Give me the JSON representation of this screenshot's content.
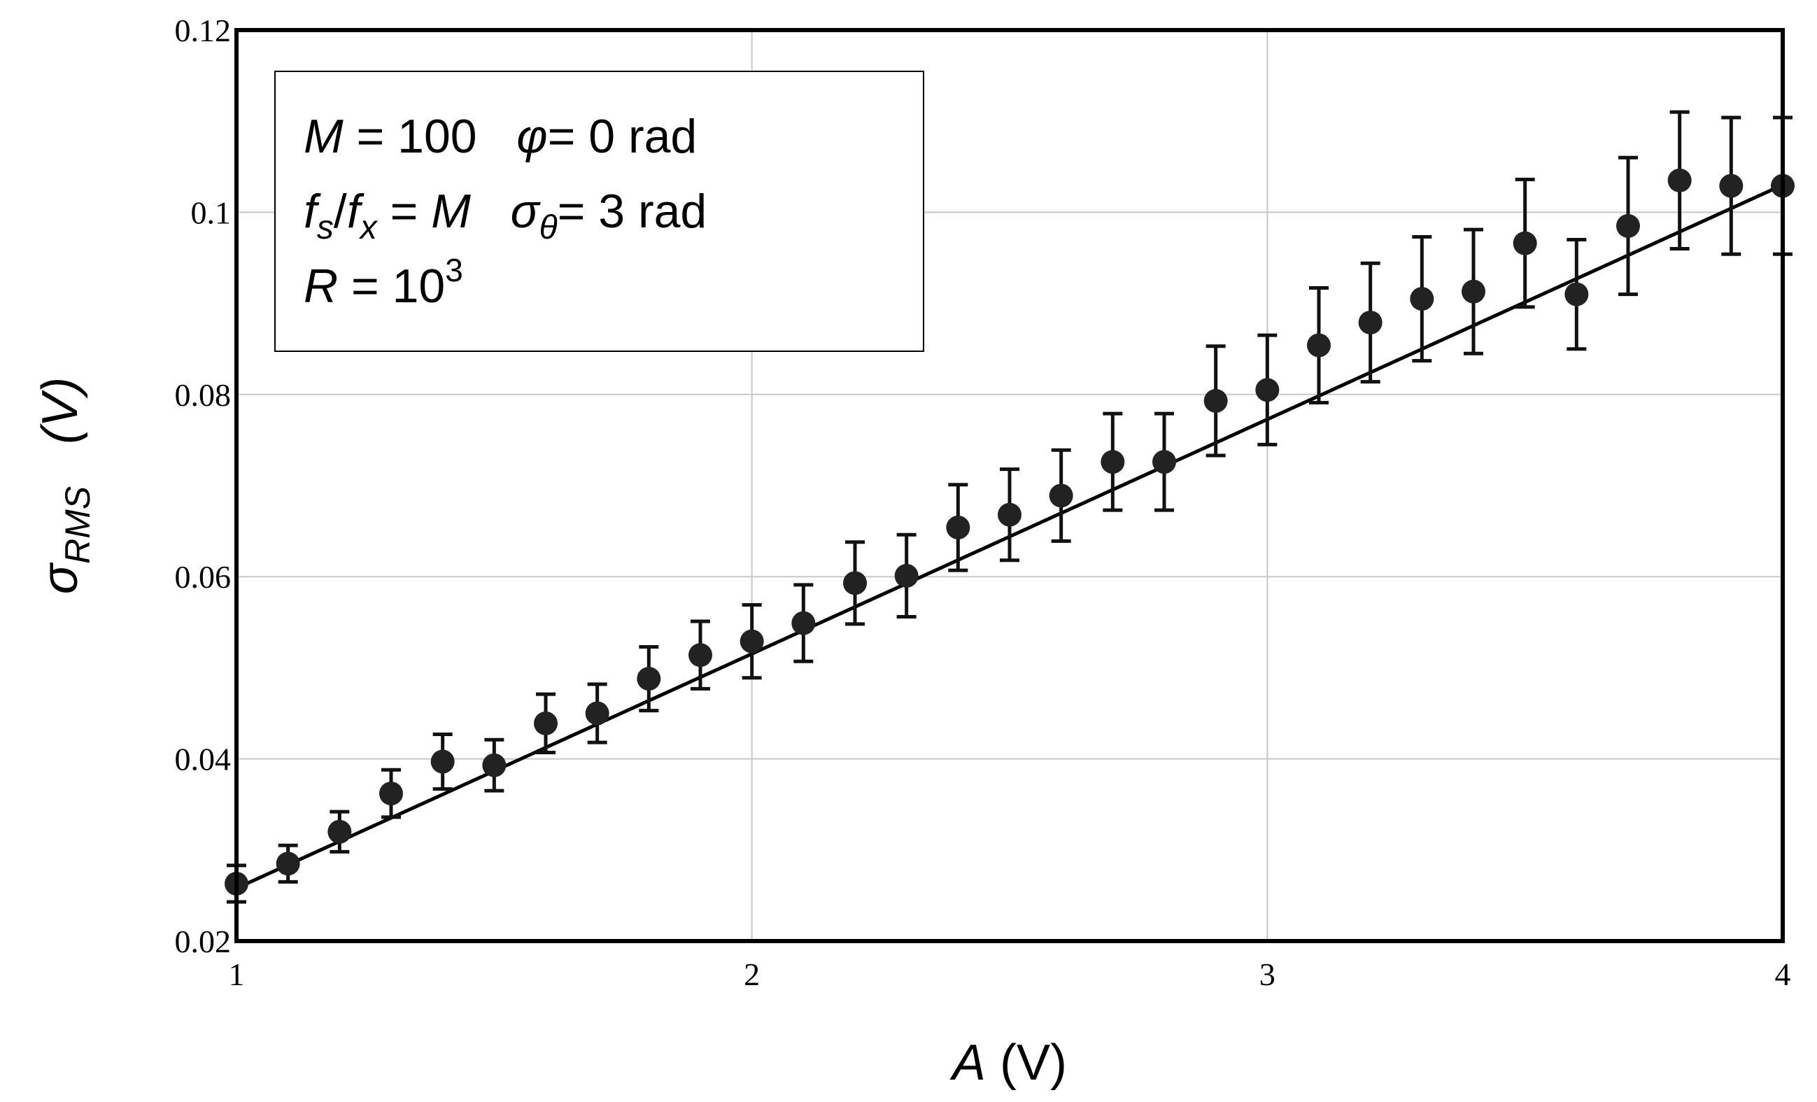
{
  "chart_data": {
    "type": "scatter",
    "xlabel": {
      "symbol": "A",
      "unit": "(V)"
    },
    "ylabel": {
      "symbol": "σ",
      "subscript": "RMS",
      "unit": "(V)"
    },
    "xlim": [
      1,
      4
    ],
    "ylim": [
      0.02,
      0.12
    ],
    "x_ticks": [
      1,
      2,
      3,
      4
    ],
    "x_tick_labels": [
      "1",
      "2",
      "3",
      "4"
    ],
    "y_ticks": [
      0.02,
      0.04,
      0.06,
      0.08,
      0.1,
      0.12
    ],
    "y_tick_labels": [
      "0.02",
      "0.04",
      "0.06",
      "0.08",
      "0.1",
      "0.12"
    ],
    "grid": true,
    "annotation_box": {
      "placement": "top-left",
      "lines": [
        [
          "M",
          " = 100   ",
          "φ",
          "= 0 rad"
        ],
        [
          "f",
          "s",
          "/",
          "f",
          "x",
          " = ",
          "M",
          "   ",
          "σ",
          "θ",
          "= 3 rad"
        ],
        [
          "R",
          " = 10",
          "3"
        ]
      ]
    },
    "points": {
      "x": [
        1.0,
        1.1,
        1.2,
        1.3,
        1.4,
        1.5,
        1.6,
        1.7,
        1.8,
        1.9,
        2.0,
        2.1,
        2.2,
        2.3,
        2.4,
        2.5,
        2.6,
        2.7,
        2.8,
        2.9,
        3.0,
        3.1,
        3.2,
        3.3,
        3.4,
        3.5,
        3.6,
        3.7,
        3.8,
        3.9,
        4.0
      ],
      "y": [
        0.0263,
        0.0285,
        0.032,
        0.0362,
        0.0397,
        0.0393,
        0.0439,
        0.045,
        0.0488,
        0.0514,
        0.0529,
        0.0549,
        0.0593,
        0.0601,
        0.0654,
        0.0668,
        0.0689,
        0.0726,
        0.0726,
        0.0793,
        0.0805,
        0.0854,
        0.0879,
        0.0905,
        0.0913,
        0.0966,
        0.091,
        0.0985,
        0.1035,
        0.1029,
        0.1029
      ],
      "err": [
        0.002,
        0.002,
        0.0022,
        0.0026,
        0.003,
        0.0028,
        0.0032,
        0.0032,
        0.0035,
        0.0037,
        0.004,
        0.0042,
        0.0045,
        0.0045,
        0.0047,
        0.005,
        0.005,
        0.0053,
        0.0053,
        0.006,
        0.006,
        0.0063,
        0.0065,
        0.0068,
        0.0068,
        0.007,
        0.006,
        0.0075,
        0.0075,
        0.0075,
        0.0075
      ]
    },
    "fit_line": {
      "x": [
        1,
        4
      ],
      "y": [
        0.0258,
        0.103
      ]
    },
    "colors": {
      "points": "#222222",
      "line": "#000000",
      "grid": "#c8c8c8",
      "axes": "#000000"
    }
  }
}
